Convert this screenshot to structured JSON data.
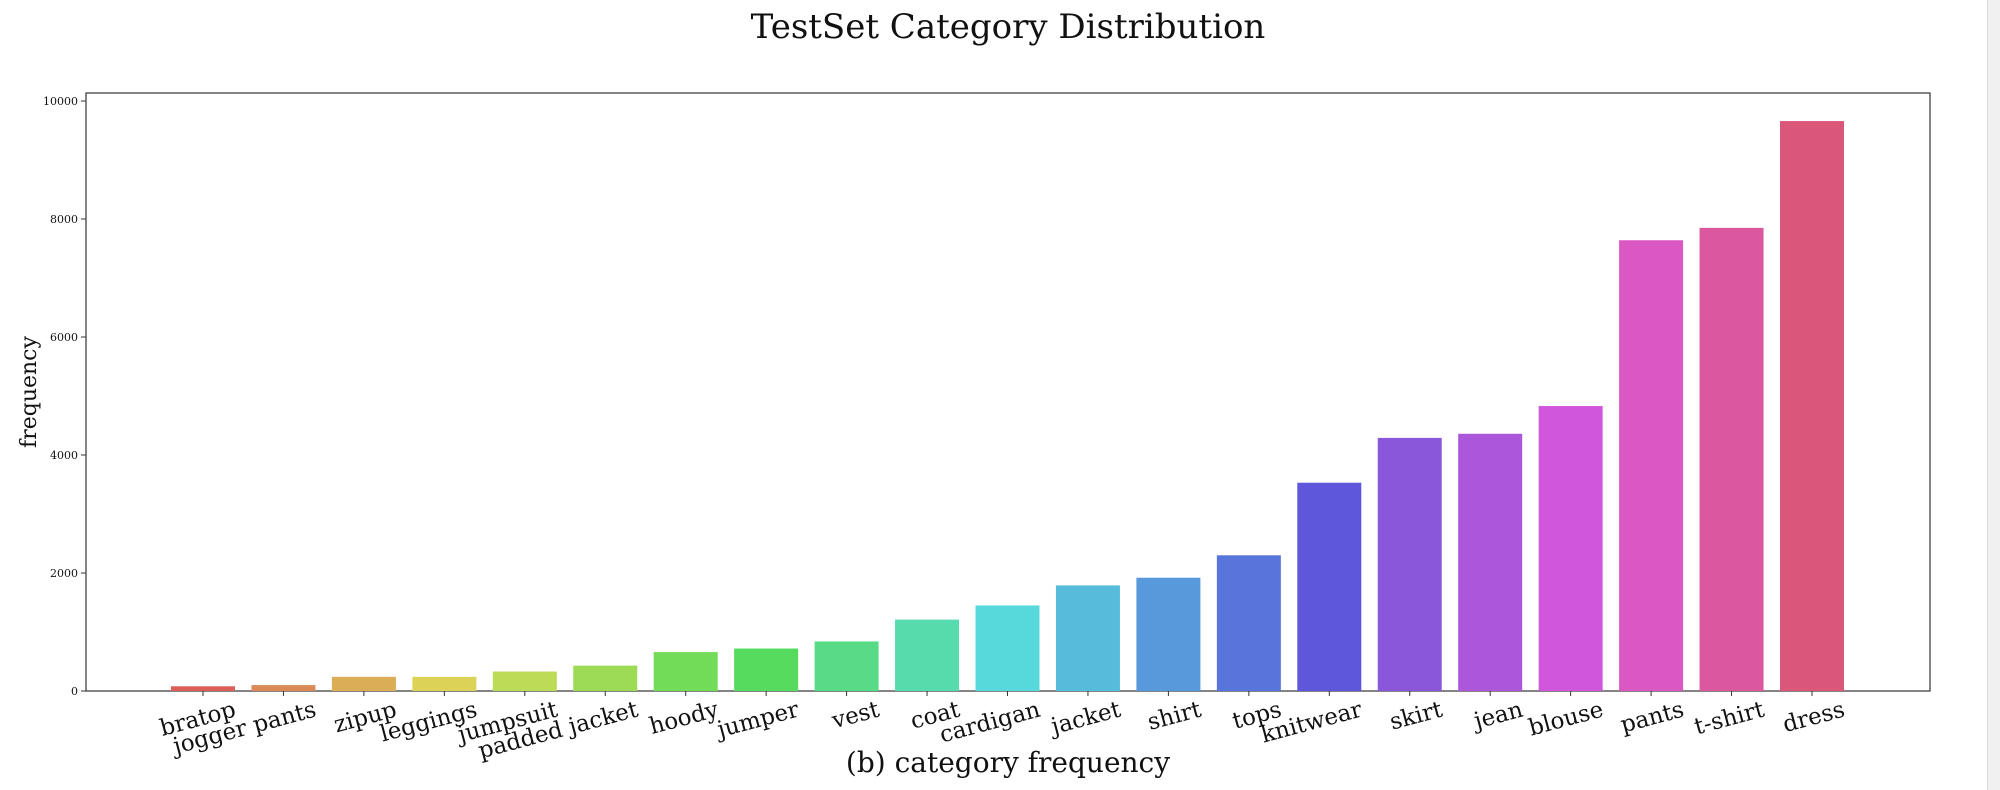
{
  "chart_data": {
    "type": "bar",
    "title": "TestSet Category Distribution",
    "xlabel": "(b) category frequency",
    "ylabel": "frequency",
    "ylim": [
      0,
      10000
    ],
    "yticks": [
      0,
      2000,
      4000,
      6000,
      8000,
      10000
    ],
    "grid": false,
    "categories": [
      "bratop",
      "jogger pants",
      "zipup",
      "leggings",
      "jumpsuit",
      "padded jacket",
      "hoody",
      "jumper",
      "vest",
      "coat",
      "cardigan",
      "jacket",
      "shirt",
      "tops",
      "knitwear",
      "skirt",
      "jean",
      "blouse",
      "pants",
      "t-shirt",
      "dress"
    ],
    "values": [
      80,
      100,
      240,
      240,
      330,
      430,
      660,
      720,
      840,
      1210,
      1450,
      1790,
      1920,
      2300,
      3530,
      4290,
      4360,
      4830,
      7640,
      7850,
      9660
    ],
    "colors": [
      "#db5f57",
      "#db8a57",
      "#dbad57",
      "#dbd257",
      "#bcdb57",
      "#9ddb57",
      "#72db57",
      "#57db5f",
      "#57db86",
      "#57dbac",
      "#57d8db",
      "#57bcdb",
      "#5799db",
      "#5775db",
      "#5f57db",
      "#8a57db",
      "#ac57db",
      "#d057db",
      "#db57c1",
      "#db579e",
      "#db5779"
    ]
  }
}
